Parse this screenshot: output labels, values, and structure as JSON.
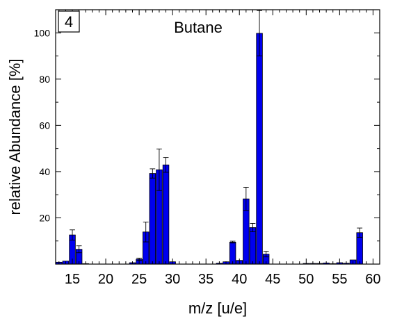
{
  "chart_data": {
    "type": "bar",
    "panel_label": "4",
    "title": "Butane",
    "xlabel": "m/z [u/e]",
    "ylabel": "relative Abundance [%]",
    "xlim": [
      12.5,
      61
    ],
    "ylim": [
      0,
      110
    ],
    "xticks": [
      15,
      20,
      25,
      30,
      35,
      40,
      45,
      50,
      55,
      60
    ],
    "yticks": [
      20,
      40,
      60,
      80,
      100
    ],
    "grid": false,
    "bar_color": "#0000ee",
    "bars": [
      {
        "x": 13,
        "value": 0.8,
        "err": 0
      },
      {
        "x": 14,
        "value": 1.3,
        "err": 0
      },
      {
        "x": 15,
        "value": 12.6,
        "err": 2.2
      },
      {
        "x": 16,
        "value": 6.4,
        "err": 1.5
      },
      {
        "x": 17,
        "value": 0.2,
        "err": 0
      },
      {
        "x": 24,
        "value": 0.6,
        "err": 0
      },
      {
        "x": 25,
        "value": 2.1,
        "err": 0.5
      },
      {
        "x": 26,
        "value": 13.9,
        "err": 4.3
      },
      {
        "x": 27,
        "value": 39.2,
        "err": 2.0
      },
      {
        "x": 28,
        "value": 40.8,
        "err": 9.0
      },
      {
        "x": 29,
        "value": 42.9,
        "err": 3.2
      },
      {
        "x": 30,
        "value": 1.0,
        "err": 0
      },
      {
        "x": 37,
        "value": 0.4,
        "err": 0
      },
      {
        "x": 38,
        "value": 1.0,
        "err": 0
      },
      {
        "x": 39,
        "value": 9.5,
        "err": 0.4
      },
      {
        "x": 40,
        "value": 1.6,
        "err": 0
      },
      {
        "x": 41,
        "value": 28.2,
        "err": 5.0
      },
      {
        "x": 42,
        "value": 15.8,
        "err": 1.8
      },
      {
        "x": 43,
        "value": 99.8,
        "err": 9.8
      },
      {
        "x": 44,
        "value": 4.3,
        "err": 1.2
      },
      {
        "x": 50,
        "value": 0.3,
        "err": 0
      },
      {
        "x": 51,
        "value": 0.3,
        "err": 0
      },
      {
        "x": 52,
        "value": 0.3,
        "err": 0
      },
      {
        "x": 53,
        "value": 0.5,
        "err": 0
      },
      {
        "x": 54,
        "value": 0.2,
        "err": 0
      },
      {
        "x": 55,
        "value": 0.6,
        "err": 0
      },
      {
        "x": 56,
        "value": 0.4,
        "err": 0
      },
      {
        "x": 57,
        "value": 1.8,
        "err": 0
      },
      {
        "x": 58,
        "value": 13.6,
        "err": 2.0
      }
    ]
  }
}
